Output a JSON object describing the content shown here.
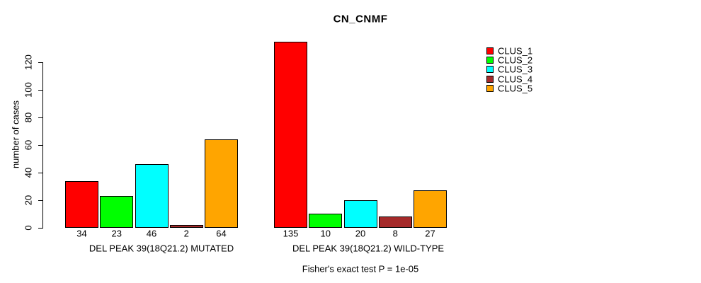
{
  "chart_data": {
    "type": "bar",
    "title": "CN_CNMF",
    "ylabel": "number of cases",
    "xlabel": "",
    "yticks": [
      0,
      20,
      40,
      60,
      80,
      100,
      120
    ],
    "ylim": [
      0,
      135
    ],
    "grid": false,
    "legend_position": "top-right",
    "series": [
      "CLUS_1",
      "CLUS_2",
      "CLUS_3",
      "CLUS_4",
      "CLUS_5"
    ],
    "colors": [
      "#ff0000",
      "#00ff00",
      "#00ffff",
      "#a52a2a",
      "#ffa500"
    ],
    "groups": [
      {
        "label": "DEL PEAK 39(18Q21.2) MUTATED",
        "values": [
          34,
          23,
          46,
          2,
          64
        ]
      },
      {
        "label": "DEL PEAK 39(18Q21.2) WILD-TYPE",
        "values": [
          135,
          10,
          20,
          8,
          27
        ]
      }
    ],
    "annotation": "Fisher's exact test P = 1e-05"
  }
}
